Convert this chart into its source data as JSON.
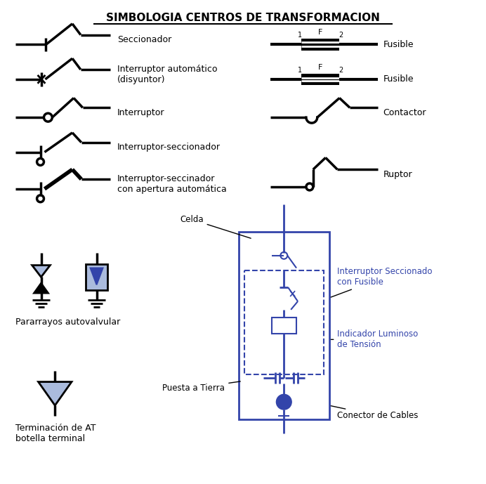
{
  "title": "SIMBOLOGIA CENTROS DE TRANSFORMACION",
  "bg_color": "#ffffff",
  "line_color": "#000000",
  "blue_color": "#3344aa",
  "light_blue": "#aabbdd",
  "labels": {
    "seccionador": "Seccionador",
    "interruptor_auto": "Interruptor automático\n(disyuntor)",
    "interruptor": "Interruptor",
    "interruptor_sec": "Interruptor-seccionador",
    "interruptor_sec_ap": "Interruptor-seccinador\ncon apertura automática",
    "fusible1": "Fusible",
    "fusible2": "Fusible",
    "contactor": "Contactor",
    "ruptor": "Ruptor",
    "pararrayos": "Pararrayos autovalvular",
    "terminacion": "Terminación de AT\nbotella terminal",
    "celda": "Celda",
    "interruptor_sec_fusible": "Interruptor Seccionado\ncon Fusible",
    "indicador": "Indicador Luminoso\nde Tensión",
    "puesta_tierra": "Puesta a Tierra",
    "conector": "Conector de Cables"
  }
}
